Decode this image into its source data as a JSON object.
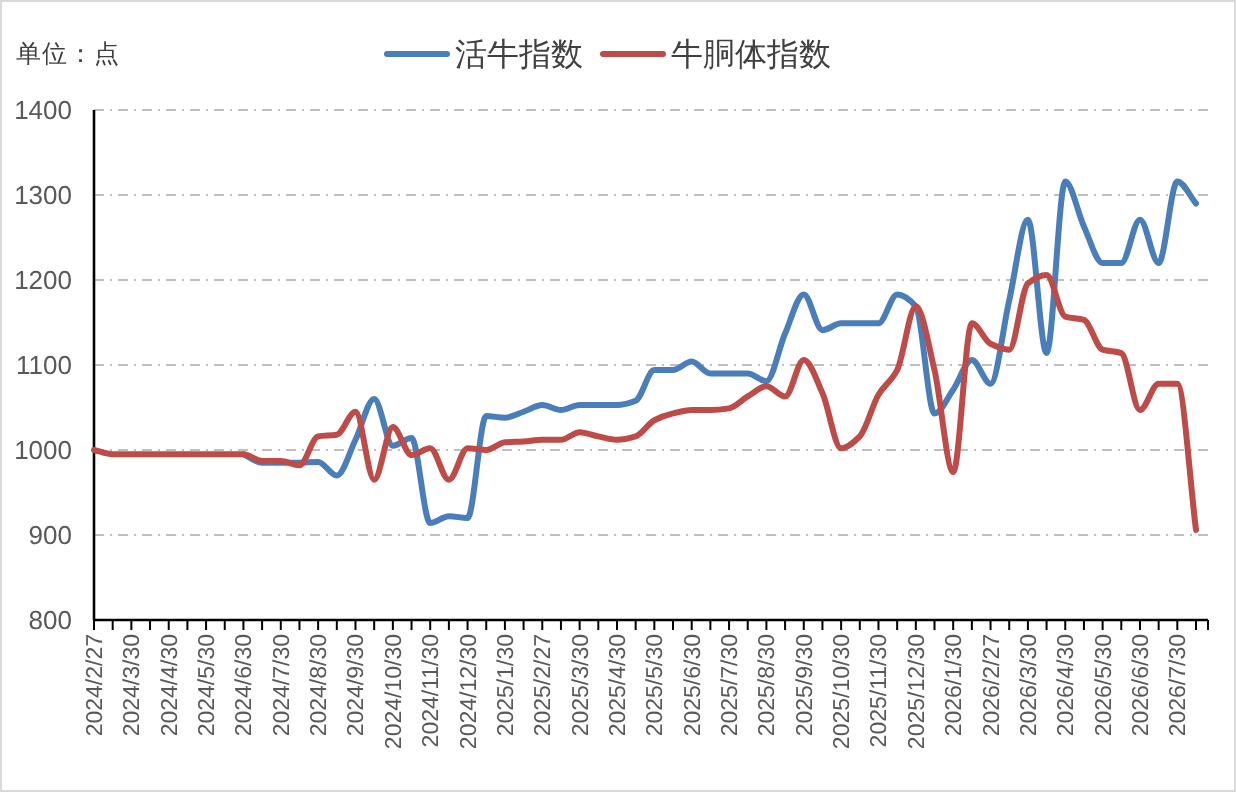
{
  "chart_data": {
    "type": "line",
    "categories": [
      "2024/2/27",
      null,
      "2024/3/30",
      null,
      "2024/4/30",
      null,
      "2024/5/30",
      null,
      "2024/6/30",
      null,
      "2024/7/30",
      null,
      "2024/8/30",
      null,
      "2024/9/30",
      null,
      "2024/10/30",
      null,
      "2024/11/30",
      null,
      "2024/12/30",
      null,
      "2025/1/30",
      null,
      "2025/2/27",
      null,
      "2025/3/30",
      null,
      "2025/4/30",
      null,
      "2025/5/30",
      null,
      "2025/6/30",
      null,
      "2025/7/30",
      null,
      "2025/8/30",
      null,
      "2025/9/30",
      null,
      "2025/10/30",
      null,
      "2025/11/30",
      null,
      "2025/12/30",
      null,
      "2026/1/30",
      null,
      "2026/2/27",
      null,
      "2026/3/30",
      null,
      "2026/4/30",
      null,
      "2026/5/30",
      null,
      "2026/6/30",
      null,
      "2026/7/30",
      null
    ],
    "series": [
      {
        "name": "活牛指数",
        "color": "#4a7ebb",
        "values": [
          null,
          null,
          null,
          null,
          null,
          null,
          null,
          null,
          995,
          985,
          985,
          985,
          986,
          970,
          1012,
          1060,
          1005,
          1014,
          914,
          922,
          920,
          1040,
          1038,
          1045,
          1053,
          1047,
          1053,
          1053,
          1053,
          1058,
          1094,
          1094,
          1104,
          1090,
          1090,
          1090,
          1081,
          1137,
          1183,
          1141,
          1149,
          1149,
          1149,
          1183,
          1169,
          1043,
          1071,
          1106,
          1078,
          1176,
          1271,
          1114,
          1316,
          1263,
          1220,
          1220,
          1271,
          1220,
          1316,
          1290
        ]
      },
      {
        "name": "牛胴体指数",
        "color": "#be4b48",
        "values": [
          1000,
          995,
          995,
          995,
          995,
          995,
          995,
          995,
          995,
          987,
          987,
          982,
          1016,
          1018,
          1045,
          965,
          1027,
          994,
          1002,
          965,
          1002,
          1000,
          1009,
          1010,
          1012,
          1012,
          1021,
          1016,
          1012,
          1016,
          1035,
          1043,
          1047,
          1047,
          1049,
          1063,
          1075,
          1063,
          1106,
          1067,
          1002,
          1016,
          1065,
          1094,
          1169,
          1094,
          974,
          1149,
          1125,
          1118,
          1196,
          1206,
          1157,
          1153,
          1118,
          1114,
          1047,
          1078,
          1078,
          906
        ]
      }
    ],
    "ylim": [
      800,
      1400
    ],
    "yticks": [
      800,
      900,
      1000,
      1100,
      1200,
      1300,
      1400
    ],
    "grid": "y",
    "legend": "top",
    "line_style": "solid",
    "annotations": [
      "单位：点"
    ]
  }
}
